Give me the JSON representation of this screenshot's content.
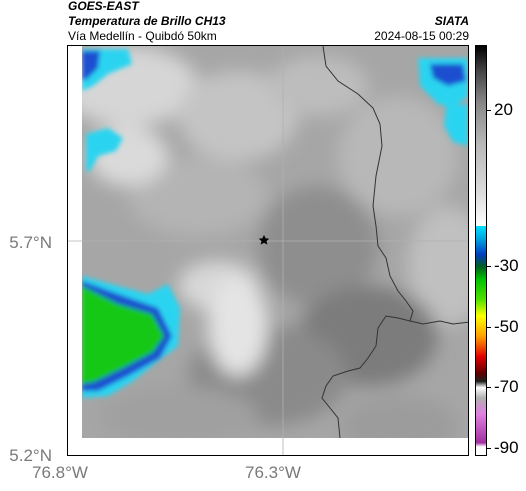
{
  "header": {
    "satellite": "GOES-EAST",
    "product": "Temperatura de Brillo CH13",
    "route": "Vía Medellín - Quibdó 50km",
    "source": "SIATA",
    "timestamp": "2024-08-15 00:29"
  },
  "axes": {
    "y_labels": [
      "5.7°N",
      "5.2°N"
    ],
    "x_labels": [
      "76.8°W",
      "76.3°W"
    ]
  },
  "colorbar": {
    "labels": [
      "20",
      "-30",
      "-50",
      "-70",
      "-90"
    ],
    "colors": {
      "warm_top": "#000000",
      "gray_mid": "#c8c8c8",
      "white": "#ffffff",
      "cyan": "#00d8ff",
      "blue": "#0040c0",
      "green": "#00c000",
      "yellow": "#ffff00",
      "red": "#e00000",
      "magenta": "#c040c0"
    }
  },
  "map": {
    "marker": "star-icon",
    "colors": {
      "cloud_gray": "#9a9a9a",
      "cold_cyan": "#2ad4f0",
      "cold_blue": "#1a4fd0",
      "cold_green": "#18c818",
      "border": "#333333",
      "grid": "#b0b0b0"
    }
  }
}
